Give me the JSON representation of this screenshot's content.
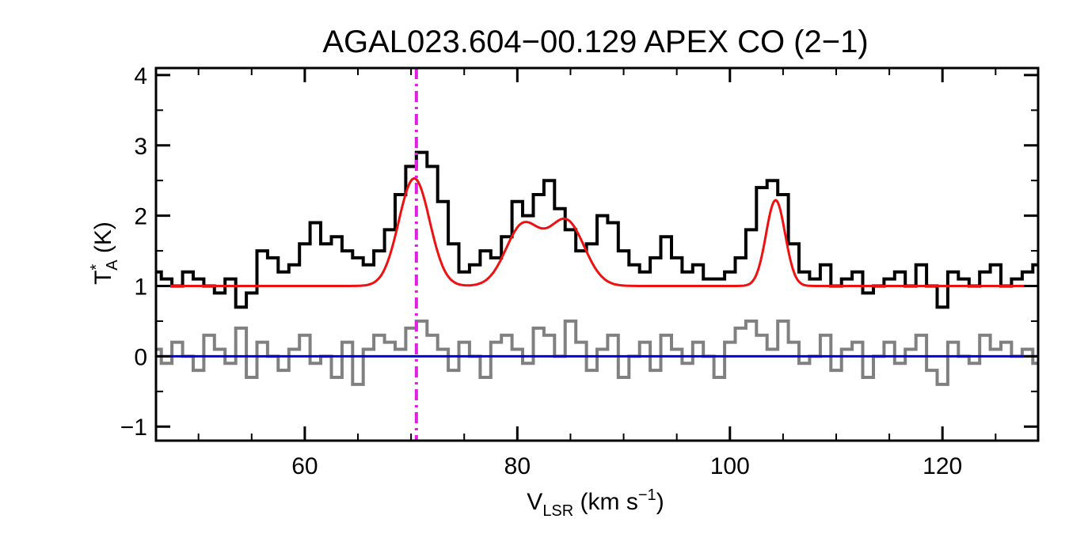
{
  "chart_data": {
    "type": "line",
    "title": "AGAL023.604−00.129  APEX CO (2−1)",
    "xlabel": {
      "main": "V",
      "sub": "LSR",
      "unit_pre": " (km s",
      "sup": "−1",
      "unit_post": ")"
    },
    "ylabel": {
      "main": "T",
      "sup": "*",
      "sub": "A",
      "unit": " (K)"
    },
    "xlim": [
      46,
      129
    ],
    "ylim": [
      -1.2,
      4.1
    ],
    "x_major_ticks": [
      60,
      80,
      100,
      120
    ],
    "x_tick_labels": [
      "60",
      "80",
      "100",
      "120"
    ],
    "x_minor_step": 5,
    "y_major_ticks": [
      -1,
      0,
      1,
      2,
      3,
      4
    ],
    "y_tick_labels": [
      "−1",
      "0",
      "1",
      "2",
      "3",
      "4"
    ],
    "y_minor_step": 0.5,
    "vline": {
      "name": "source velocity",
      "x": 70.5,
      "color": "#e020e0",
      "style": "dash-dot"
    },
    "hline": {
      "y": 0,
      "color": "#0000dd"
    },
    "series": [
      {
        "kind": "observed-spectrum",
        "color": "#000000",
        "style": "histogram",
        "x": [
          46,
          47,
          48,
          49,
          50,
          51,
          52,
          53,
          54,
          55,
          56,
          57,
          58,
          59,
          60,
          61,
          62,
          63,
          64,
          65,
          66,
          67,
          68,
          69,
          70,
          71,
          72,
          73,
          74,
          75,
          76,
          77,
          78,
          79,
          80,
          81,
          82,
          83,
          84,
          85,
          86,
          87,
          88,
          89,
          90,
          91,
          92,
          93,
          94,
          95,
          96,
          97,
          98,
          99,
          100,
          101,
          102,
          103,
          104,
          105,
          106,
          107,
          108,
          109,
          110,
          111,
          112,
          113,
          114,
          115,
          116,
          117,
          118,
          119,
          120,
          121,
          122,
          123,
          124,
          125,
          126,
          127,
          128,
          129
        ],
        "values": [
          1.2,
          1.1,
          1.0,
          1.2,
          1.1,
          1.0,
          0.9,
          1.1,
          0.7,
          0.9,
          1.5,
          1.4,
          1.2,
          1.3,
          1.6,
          1.9,
          1.6,
          1.7,
          1.5,
          1.4,
          1.3,
          1.5,
          1.8,
          2.3,
          2.7,
          2.9,
          2.7,
          2.2,
          1.6,
          1.2,
          1.3,
          1.5,
          1.4,
          1.7,
          2.2,
          2.0,
          2.3,
          2.5,
          2.1,
          1.8,
          1.5,
          1.6,
          2.0,
          1.9,
          1.5,
          1.3,
          1.2,
          1.4,
          1.7,
          1.4,
          1.2,
          1.3,
          1.1,
          1.1,
          1.2,
          1.4,
          1.8,
          2.4,
          2.5,
          2.3,
          1.6,
          1.2,
          1.1,
          1.3,
          1.0,
          1.1,
          1.2,
          0.9,
          1.0,
          1.1,
          1.2,
          1.0,
          1.3,
          1.0,
          0.7,
          1.2,
          1.1,
          1.0,
          1.2,
          1.3,
          1.0,
          1.1,
          1.2,
          1.3
        ]
      },
      {
        "kind": "gaussian-fit",
        "color": "#ee1111",
        "style": "smooth",
        "baseline": 1.0,
        "components": [
          {
            "center": 70.3,
            "amplitude": 1.53,
            "sigma": 1.45
          },
          {
            "center": 80.5,
            "amplitude": 0.85,
            "sigma": 1.6
          },
          {
            "center": 84.6,
            "amplitude": 0.92,
            "sigma": 1.7
          },
          {
            "center": 104.3,
            "amplitude": 1.22,
            "sigma": 0.9
          }
        ]
      },
      {
        "kind": "residual",
        "color": "#808080",
        "style": "histogram",
        "x": [
          46,
          47,
          48,
          49,
          50,
          51,
          52,
          53,
          54,
          55,
          56,
          57,
          58,
          59,
          60,
          61,
          62,
          63,
          64,
          65,
          66,
          67,
          68,
          69,
          70,
          71,
          72,
          73,
          74,
          75,
          76,
          77,
          78,
          79,
          80,
          81,
          82,
          83,
          84,
          85,
          86,
          87,
          88,
          89,
          90,
          91,
          92,
          93,
          94,
          95,
          96,
          97,
          98,
          99,
          100,
          101,
          102,
          103,
          104,
          105,
          106,
          107,
          108,
          109,
          110,
          111,
          112,
          113,
          114,
          115,
          116,
          117,
          118,
          119,
          120,
          121,
          122,
          123,
          124,
          125,
          126,
          127,
          128,
          129
        ],
        "values": [
          0.1,
          -0.1,
          0.2,
          0.0,
          -0.2,
          0.3,
          0.1,
          -0.1,
          0.4,
          -0.3,
          0.2,
          0.0,
          -0.2,
          0.1,
          0.3,
          -0.1,
          0.0,
          -0.3,
          0.2,
          -0.4,
          0.1,
          0.3,
          0.2,
          0.1,
          0.4,
          0.5,
          0.3,
          0.1,
          -0.2,
          0.2,
          0.0,
          -0.3,
          0.2,
          0.3,
          0.1,
          -0.1,
          0.4,
          0.3,
          0.0,
          0.5,
          0.2,
          -0.2,
          0.1,
          0.3,
          -0.3,
          0.0,
          0.2,
          -0.2,
          0.3,
          0.1,
          -0.1,
          0.2,
          0.0,
          -0.3,
          0.2,
          0.4,
          0.5,
          0.3,
          0.1,
          0.5,
          0.2,
          -0.1,
          0.0,
          0.3,
          -0.2,
          0.1,
          0.2,
          -0.3,
          0.0,
          0.2,
          -0.1,
          0.1,
          0.3,
          -0.2,
          -0.4,
          0.2,
          0.0,
          -0.1,
          0.3,
          0.1,
          0.2,
          0.0,
          0.1,
          -0.1
        ]
      }
    ]
  }
}
